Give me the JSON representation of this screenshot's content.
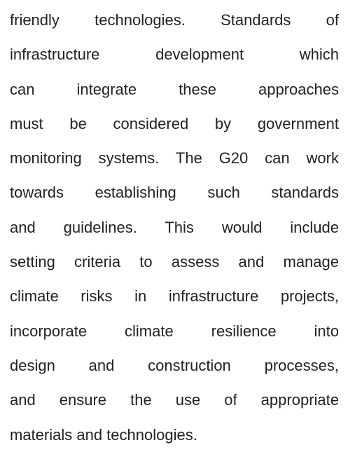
{
  "paragraph": {
    "lines": [
      "friendly technologies. Standards of",
      "infrastructure development which",
      "can integrate these approaches",
      "must be considered by government",
      "monitoring systems. The G20 can work",
      "towards establishing such standards",
      "and guidelines. This would include",
      "setting criteria to assess and manage",
      "climate risks in infrastructure projects,",
      "incorporate climate resilience into",
      "design and construction processes,",
      "and ensure the use of appropriate",
      "materials and technologies."
    ]
  }
}
